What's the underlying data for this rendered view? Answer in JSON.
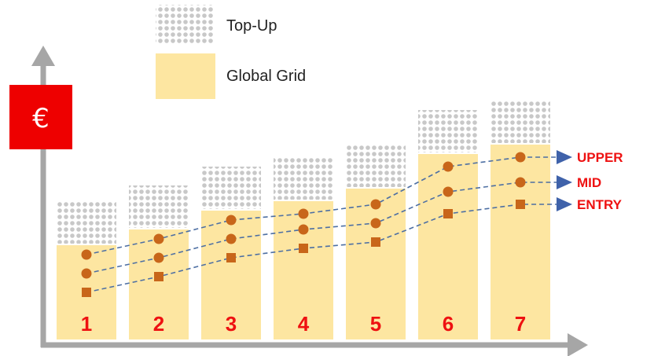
{
  "chart_data": {
    "type": "bar",
    "categories": [
      "1",
      "2",
      "3",
      "4",
      "5",
      "6",
      "7"
    ],
    "y_axis_symbol": "€",
    "legend": {
      "placement": "top-left",
      "items": [
        {
          "label": "Top-Up",
          "pattern": "dots"
        },
        {
          "label": "Global Grid",
          "pattern": "solid"
        }
      ]
    },
    "grid_values": [
      30,
      35,
      41,
      44,
      48,
      59,
      62
    ],
    "topup_values": [
      14,
      14,
      14,
      14,
      14,
      14,
      14
    ],
    "lines": [
      {
        "name": "UPPER",
        "marker": "circle",
        "values": [
          27,
          32,
          38,
          40,
          43,
          55,
          58
        ]
      },
      {
        "name": "MID",
        "marker": "circle",
        "values": [
          21,
          26,
          32,
          35,
          37,
          47,
          50
        ]
      },
      {
        "name": "ENTRY",
        "marker": "square",
        "values": [
          15,
          20,
          26,
          29,
          31,
          40,
          43
        ]
      }
    ],
    "ylim": [
      0,
      80
    ],
    "grid": false
  },
  "colors": {
    "bar": "#fde6a1",
    "topup_dot": "#c8c8c8",
    "marker": "#c8661a",
    "line": "#4d6fa3",
    "arrow": "#3f62aa",
    "axis": "#a6a6a6",
    "label_red": "#ee1111",
    "currency_box": "#ee0000"
  }
}
